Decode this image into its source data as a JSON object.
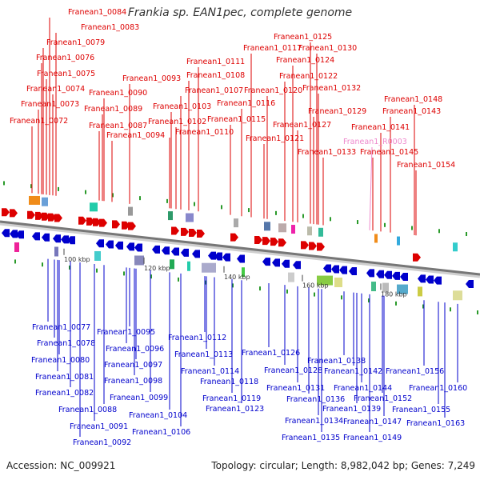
{
  "title": "Frankia sp. EAN1pec, complete genome",
  "footer": {
    "accession": "Accession: NC_009921",
    "summary": "Topology: circular; Length: 8,982,042 bp; Genes: 7,249"
  },
  "colors": {
    "forward": "#dd0000",
    "reverse": "#0000cc",
    "rna": "#ee88cc",
    "backbone": "#777777"
  },
  "kbp_ticks": [
    "100 kbp",
    "120 kbp",
    "140 kbp",
    "160 kbp",
    "180 kbp"
  ],
  "top_labels": [
    {
      "text": "Franean1_0084",
      "kind": "forward"
    },
    {
      "text": "Franean1_0083",
      "kind": "forward"
    },
    {
      "text": "Franean1_0079",
      "kind": "forward"
    },
    {
      "text": "Franean1_0076",
      "kind": "forward"
    },
    {
      "text": "Franean1_0075",
      "kind": "forward"
    },
    {
      "text": "Franean1_0074",
      "kind": "forward"
    },
    {
      "text": "Franean1_0073",
      "kind": "forward"
    },
    {
      "text": "Franean1_0072",
      "kind": "forward"
    },
    {
      "text": "Franean1_0093",
      "kind": "forward"
    },
    {
      "text": "Franean1_0090",
      "kind": "forward"
    },
    {
      "text": "Franean1_0089",
      "kind": "forward"
    },
    {
      "text": "Franean1_0087",
      "kind": "forward"
    },
    {
      "text": "Franean1_0094",
      "kind": "forward"
    },
    {
      "text": "Franean1_0111",
      "kind": "forward"
    },
    {
      "text": "Franean1_0108",
      "kind": "forward"
    },
    {
      "text": "Franean1_0107",
      "kind": "forward"
    },
    {
      "text": "Franean1_0103",
      "kind": "forward"
    },
    {
      "text": "Franean1_0102",
      "kind": "forward"
    },
    {
      "text": "Franean1_0110",
      "kind": "forward"
    },
    {
      "text": "Franean1_0125",
      "kind": "forward"
    },
    {
      "text": "Franean1_0117",
      "kind": "forward"
    },
    {
      "text": "Franean1_0130",
      "kind": "forward"
    },
    {
      "text": "Franean1_0124",
      "kind": "forward"
    },
    {
      "text": "Franean1_0122",
      "kind": "forward"
    },
    {
      "text": "Franean1_0120",
      "kind": "forward"
    },
    {
      "text": "Franean1_0132",
      "kind": "forward"
    },
    {
      "text": "Franean1_0116",
      "kind": "forward"
    },
    {
      "text": "Franean1_0129",
      "kind": "forward"
    },
    {
      "text": "Franean1_0115",
      "kind": "forward"
    },
    {
      "text": "Franean1_0127",
      "kind": "forward"
    },
    {
      "text": "Franean1_0121",
      "kind": "forward"
    },
    {
      "text": "Franean1_0133",
      "kind": "forward"
    },
    {
      "text": "Franean1_0148",
      "kind": "forward"
    },
    {
      "text": "Franean1_0143",
      "kind": "forward"
    },
    {
      "text": "Franean1_0141",
      "kind": "forward"
    },
    {
      "text": "Franean1_R0003",
      "kind": "rna"
    },
    {
      "text": "Franean1_0145",
      "kind": "forward"
    },
    {
      "text": "Franean1_0154",
      "kind": "forward"
    }
  ],
  "bottom_labels": [
    "Franean1_0077",
    "Franean1_0078",
    "Franean1_0080",
    "Franean1_0081",
    "Franean1_0082",
    "Franean1_0088",
    "Franean1_0091",
    "Franean1_0092",
    "Franean1_0095",
    "Franean1_0096",
    "Franean1_0097",
    "Franean1_0098",
    "Franean1_0099",
    "Franean1_0104",
    "Franean1_0106",
    "Franean1_0112",
    "Franean1_0113",
    "Franean1_0114",
    "Franean1_0118",
    "Franean1_0119",
    "Franean1_0123",
    "Franean1_0126",
    "Franean1_0128",
    "Franean1_0131",
    "Franean1_0136",
    "Franean1_0134",
    "Franean1_0135",
    "Franean1_0138",
    "Franean1_0142",
    "Franean1_0144",
    "Franean1_0139",
    "Franean1_0147",
    "Franean1_0149",
    "Franean1_0152",
    "Franean1_0156",
    "Franean1_0160",
    "Franean1_0155",
    "Franean1_0163"
  ]
}
